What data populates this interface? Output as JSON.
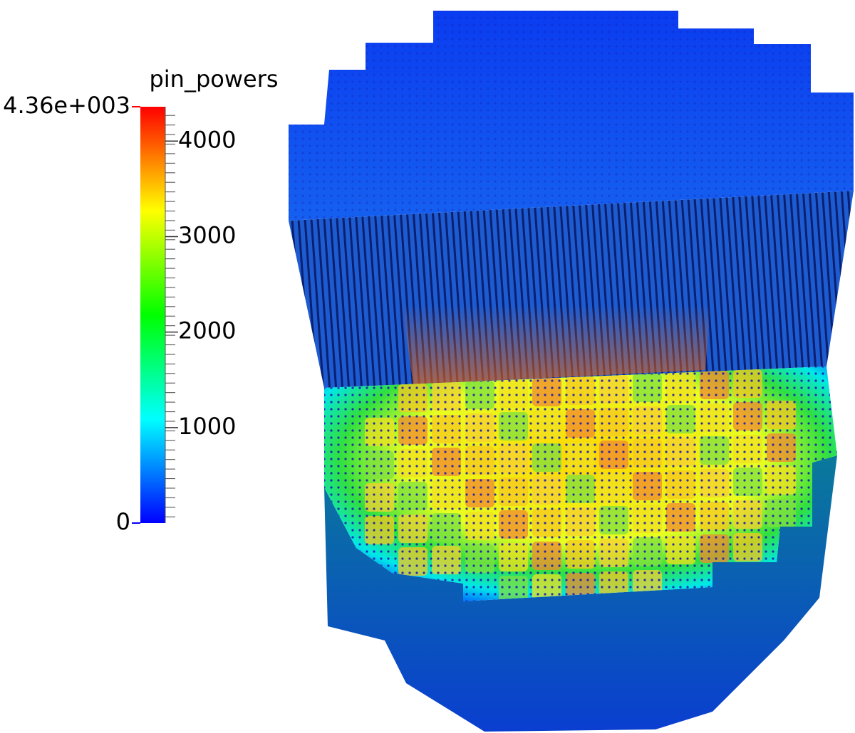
{
  "colorbar": {
    "title": "pin_powers",
    "min": 0,
    "max": {
      "value": 4360,
      "label": "4.36e+003"
    },
    "ticks": [
      1000,
      2000,
      3000,
      4000
    ],
    "colors": [
      "#0000ff",
      "#00ffff",
      "#00ff00",
      "#ffff00",
      "#ff0000"
    ]
  }
}
